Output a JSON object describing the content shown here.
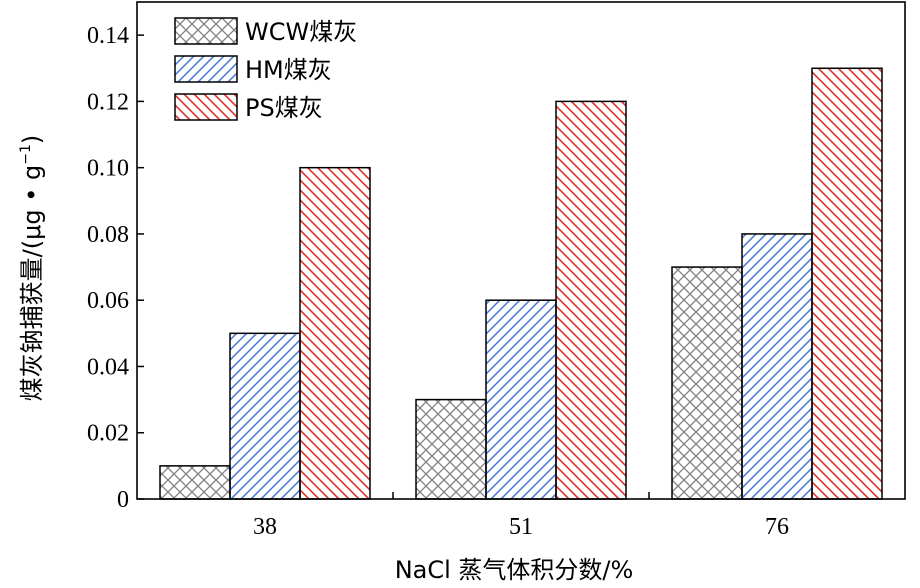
{
  "chart_data": {
    "type": "bar",
    "categories": [
      "38",
      "51",
      "76"
    ],
    "series": [
      {
        "name": "WCW煤灰",
        "values": [
          0.01,
          0.03,
          0.07
        ],
        "color": "#808080",
        "pattern": "crosshatch"
      },
      {
        "name": "HM煤灰",
        "values": [
          0.05,
          0.06,
          0.08
        ],
        "color": "#4f7fd8",
        "pattern": "diagonal"
      },
      {
        "name": "PS煤灰",
        "values": [
          0.1,
          0.12,
          0.13
        ],
        "color": "#e0322a",
        "pattern": "diagonal"
      }
    ],
    "xlabel": "NaCl 蒸气体积分数/%",
    "ylabel_main": "煤灰钠捕获量/(μg • g",
    "ylabel_sup": "−1",
    "ylabel_close": ")",
    "ylim": [
      0,
      0.15
    ],
    "yticks": [
      "0",
      "0.02",
      "0.04",
      "0.06",
      "0.08",
      "0.10",
      "0.12",
      "0.14"
    ],
    "legend_position": "top-left",
    "grid": false
  }
}
